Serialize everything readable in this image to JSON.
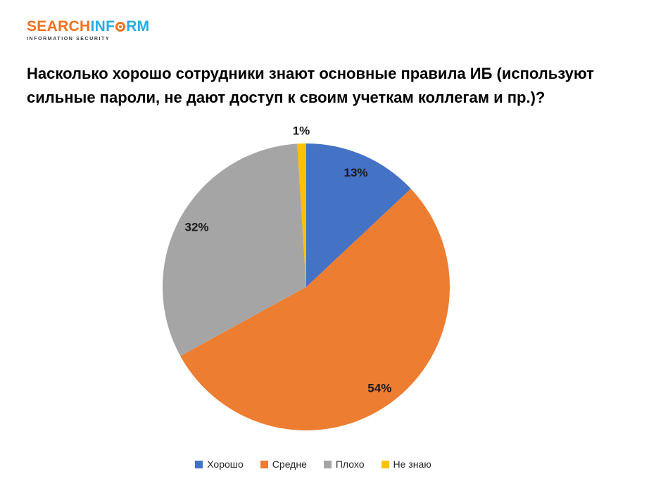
{
  "logo": {
    "word_part1": "SEARCH",
    "word_part2": "INF",
    "word_part3": "RM",
    "tagline": "INFORMATION SECURITY",
    "orange": "#F3701E",
    "blue": "#29ABE2",
    "tagline_color": "#3A3F47"
  },
  "title": {
    "text": "Насколько хорошо сотрудники знают основные правила ИБ (используют сильные пароли, не дают доступ к своим учеткам коллегам и пр.)?",
    "lines": [
      "Насколько хорошо сотрудники знают основные правила ИБ (используют",
      "сильные пароли, не дают доступ к своим учеткам коллегам и пр.)?"
    ],
    "color": "#000000"
  },
  "chart_data": {
    "type": "pie",
    "categories": [
      "Хорошо",
      "Средне",
      "Плохо",
      "Не знаю"
    ],
    "values": [
      13,
      54,
      32,
      1
    ],
    "data_labels": [
      "13%",
      "54%",
      "32%",
      "1%"
    ],
    "colors": [
      "#4472C4",
      "#ED7D31",
      "#A5A5A5",
      "#FFC000"
    ],
    "start_angle_deg": 0,
    "direction": "clockwise",
    "legend_position": "bottom",
    "label_color": "#1A1A1A",
    "legend_text_color": "#262626",
    "data_label_placement": "inside-end, tiny slices outside"
  }
}
